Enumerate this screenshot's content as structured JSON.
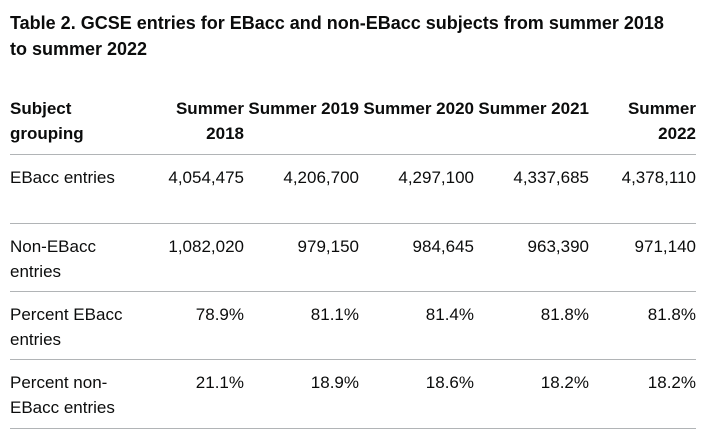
{
  "title": "Table 2. GCSE entries for EBacc and non-EBacc subjects from summer 2018 to summer 2022",
  "table": {
    "headers": [
      "Subject grouping",
      "Summer 2018",
      "Summer 2019",
      "Summer 2020",
      "Summer 2021",
      "Summer 2022"
    ],
    "rows": [
      [
        "EBacc entries",
        "4,054,475",
        "4,206,700",
        "4,297,100",
        "4,337,685",
        "4,378,110"
      ],
      [
        "Non-EBacc entries",
        "1,082,020",
        "979,150",
        "984,645",
        "963,390",
        "971,140"
      ],
      [
        "Percent EBacc entries",
        "78.9%",
        "81.1%",
        "81.4%",
        "81.8%",
        "81.8%"
      ],
      [
        "Percent non-EBacc entries",
        "21.1%",
        "18.9%",
        "18.6%",
        "18.2%",
        "18.2%"
      ]
    ]
  }
}
